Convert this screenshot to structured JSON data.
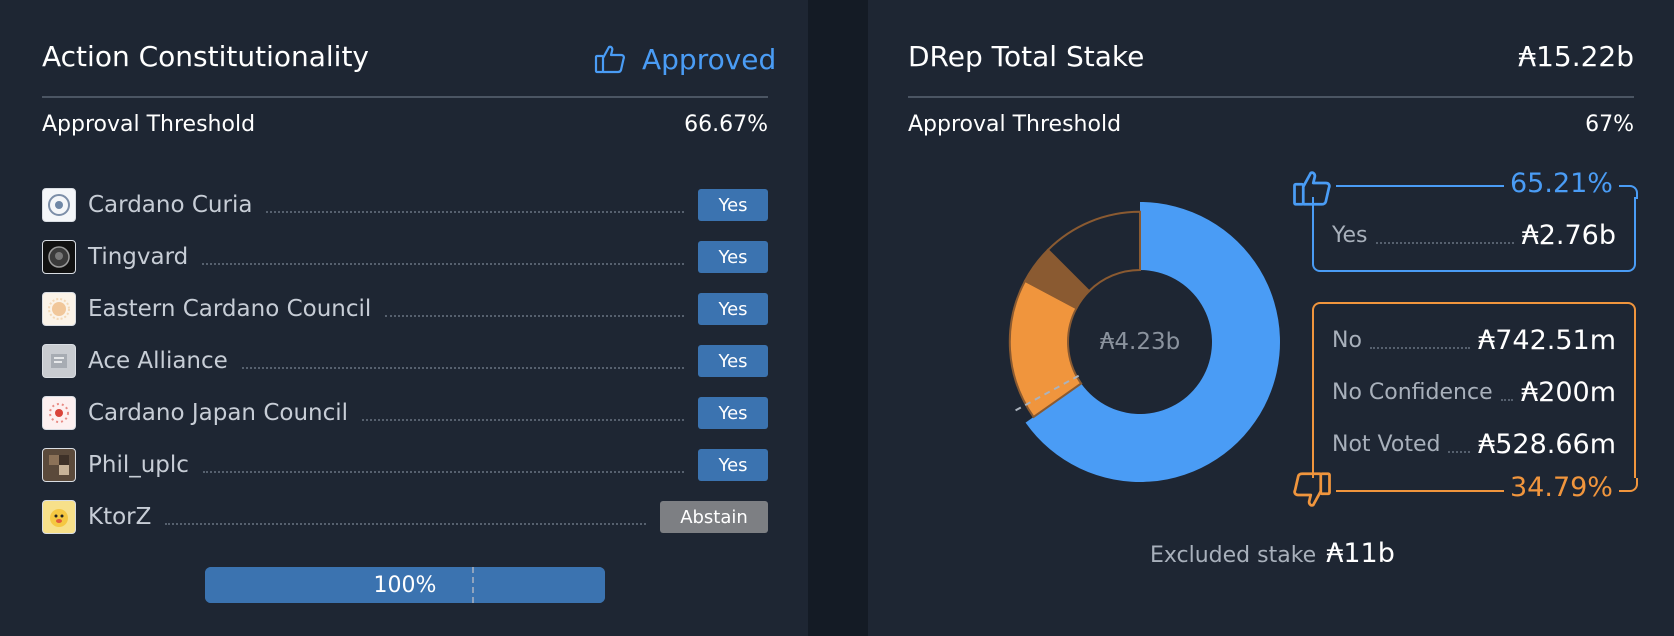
{
  "constitutionality": {
    "title": "Action Constitutionality",
    "status": "Approved",
    "threshold_label": "Approval Threshold",
    "threshold_value": "66.67%",
    "voters": [
      {
        "name": "Cardano Curia",
        "vote": "Yes"
      },
      {
        "name": "Tingvard",
        "vote": "Yes"
      },
      {
        "name": "Eastern Cardano Council",
        "vote": "Yes"
      },
      {
        "name": "Ace Alliance",
        "vote": "Yes"
      },
      {
        "name": "Cardano Japan Council",
        "vote": "Yes"
      },
      {
        "name": "Phil_uplc",
        "vote": "Yes"
      },
      {
        "name": "KtorZ",
        "vote": "Abstain"
      }
    ],
    "progress_label": "100%",
    "progress_value": 1.0,
    "progress_threshold": 0.6667
  },
  "drep": {
    "title": "DRep Total Stake",
    "total_stake": "₳15.22b",
    "threshold_label": "Approval Threshold",
    "threshold_value": "67%",
    "center_label": "₳4.23b",
    "yes_percent": "65.21%",
    "no_percent": "34.79%",
    "yes": {
      "label": "Yes",
      "value": "₳2.76b"
    },
    "no": {
      "label": "No",
      "value": "₳742.51m"
    },
    "no_confidence": {
      "label": "No Confidence",
      "value": "₳200m"
    },
    "not_voted": {
      "label": "Not Voted",
      "value": "₳528.66m"
    },
    "excluded_label": "Excluded stake",
    "excluded_value": "₳11b",
    "colors": {
      "yes": "#4a9cf5",
      "no": "#f0953d",
      "no_confidence": "#8a5a31",
      "not_voted": "#1e2633"
    }
  },
  "chart_data": {
    "type": "pie",
    "categories": [
      "Yes",
      "No",
      "No Confidence",
      "Not Voted"
    ],
    "values": [
      2.76,
      0.74251,
      0.2,
      0.52866
    ],
    "unit": "₳ billions",
    "threshold": 0.67
  }
}
